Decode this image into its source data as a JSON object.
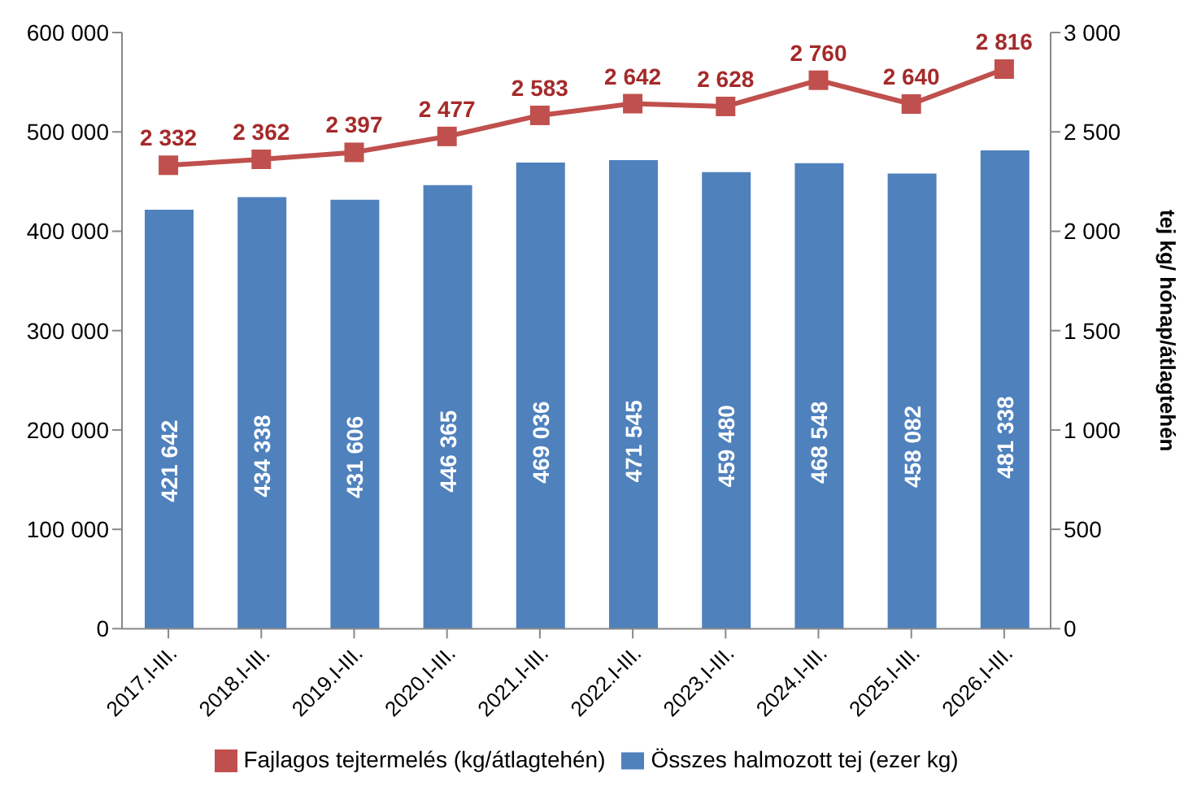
{
  "chart_data": {
    "type": "bar",
    "categories": [
      "2017.I-III.",
      "2018.I-III.",
      "2019.I-III.",
      "2020.I-III.",
      "2021.I-III.",
      "2022.I-III.",
      "2023.I-III.",
      "2024.I-III.",
      "2025.I-III.",
      "2026.I-III."
    ],
    "series": [
      {
        "name": "Összes halmozott tej (ezer kg)",
        "color": "#4f81bd",
        "values": [
          421642,
          434338,
          431606,
          446365,
          469036,
          471545,
          459480,
          468548,
          458082,
          481338
        ],
        "value_labels": [
          "421 642",
          "434 338",
          "431 606",
          "446 365",
          "469 036",
          "471 545",
          "459 480",
          "468 548",
          "458 082",
          "481 338"
        ]
      },
      {
        "name": "Fajlagos tejtermelés (kg/átlagtehén)",
        "type": "line",
        "axis": "y2",
        "color": "#c0504d",
        "marker": "square",
        "values": [
          2332,
          2362,
          2397,
          2477,
          2583,
          2642,
          2628,
          2760,
          2640,
          2816
        ],
        "value_labels": [
          "2 332",
          "2 362",
          "2 397",
          "2 477",
          "2 583",
          "2 642",
          "2 628",
          "2 760",
          "2 640",
          "2 816"
        ]
      }
    ],
    "ylim": [
      0,
      600000
    ],
    "yticks": [
      0,
      {
        "value": 100000,
        "label": "100 000"
      },
      {
        "value": 200000,
        "label": "200 000"
      },
      {
        "value": 300000,
        "label": "300 000"
      },
      {
        "value": 400000,
        "label": "400 000"
      },
      {
        "value": 500000,
        "label": "500 000"
      },
      {
        "value": 600000,
        "label": "600 000"
      }
    ],
    "y2lim": [
      0,
      3000
    ],
    "y2ticks": [
      0,
      500,
      {
        "value": 1000,
        "label": "1 000"
      },
      {
        "value": 1500,
        "label": "1 500"
      },
      {
        "value": 2000,
        "label": "2 000"
      },
      {
        "value": 2500,
        "label": "2 500"
      },
      {
        "value": 3000,
        "label": "3 000"
      }
    ],
    "y2label": "tej kg/ hónap/átlagtehén",
    "legend": "bottom"
  }
}
